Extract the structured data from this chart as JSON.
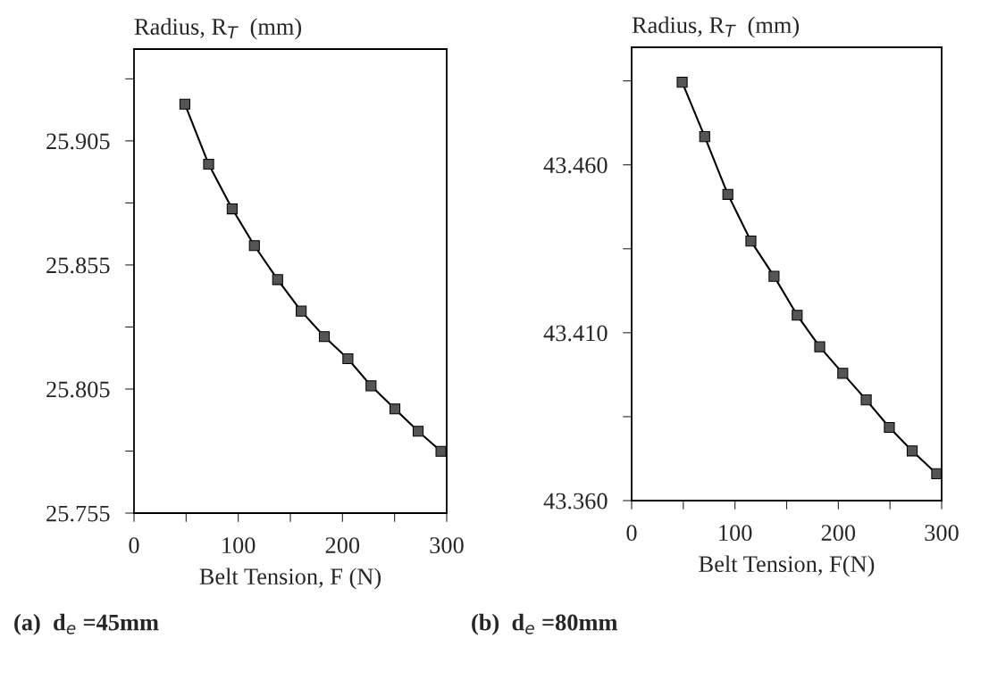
{
  "chart_data": [
    {
      "type": "line",
      "xlabel": "Belt Tension, F (N)",
      "ylabel": "Radius, R$_{T}$  (mm)",
      "annotations": [
        "(a)  d$_{e}$ =45mm"
      ],
      "marker": "square",
      "grid": false,
      "legend": false,
      "series": [
        {
          "color": "#000000",
          "x": [
            48.8,
            71.6,
            94.2,
            115.5,
            137.8,
            160.4,
            182.6,
            205.2,
            227.4,
            250.3,
            272.6,
            294.5
          ],
          "values": [
            25.9198,
            25.8956,
            25.8776,
            25.8628,
            25.8491,
            25.8364,
            25.8261,
            25.8172,
            25.8063,
            25.797,
            25.788,
            25.7799
          ]
        }
      ],
      "xlim": [
        0,
        300
      ],
      "xticks": [
        0,
        {
          "value": 50,
          "label": null
        },
        100,
        {
          "value": 150,
          "label": null
        },
        200,
        {
          "value": 250,
          "label": null
        },
        300
      ],
      "ylim": [
        25.755,
        25.942
      ],
      "yticks": [
        {
          "value": 25.755,
          "label": "25.755"
        },
        {
          "value": 25.78,
          "label": null
        },
        {
          "value": 25.805,
          "label": "25.805"
        },
        {
          "value": 25.83,
          "label": null
        },
        {
          "value": 25.855,
          "label": "25.855"
        },
        {
          "value": 25.88,
          "label": null
        },
        {
          "value": 25.905,
          "label": "25.905"
        },
        {
          "value": 25.93,
          "label": null
        }
      ]
    },
    {
      "type": "line",
      "xlabel": "Belt Tension, F(N)",
      "ylabel": "Radius, R$_{T}$  (mm)",
      "annotations": [
        "(b)  d$_{e}$ =80mm"
      ],
      "marker": "square",
      "grid": false,
      "legend": false,
      "series": [
        {
          "color": "#000000",
          "x": [
            48.9,
            70.7,
            93.1,
            115.4,
            137.8,
            160.2,
            182,
            204.3,
            227,
            249.4,
            271.5,
            295.2
          ],
          "values": [
            43.4846,
            43.4684,
            43.4512,
            43.4373,
            43.4268,
            43.4152,
            43.4058,
            43.3979,
            43.39,
            43.3818,
            43.3748,
            43.368
          ]
        }
      ],
      "xlim": [
        0,
        300
      ],
      "xticks": [
        0,
        {
          "value": 50,
          "label": null
        },
        100,
        {
          "value": 150,
          "label": null
        },
        200,
        {
          "value": 250,
          "label": null
        },
        300
      ],
      "ylim": [
        43.36,
        43.495
      ],
      "yticks": [
        {
          "value": 43.36,
          "label": "43.360"
        },
        {
          "value": 43.385,
          "label": null
        },
        {
          "value": 43.41,
          "label": "43.410"
        },
        {
          "value": 43.435,
          "label": null
        },
        {
          "value": 43.46,
          "label": "43.460"
        },
        {
          "value": 43.485,
          "label": null
        }
      ]
    }
  ]
}
